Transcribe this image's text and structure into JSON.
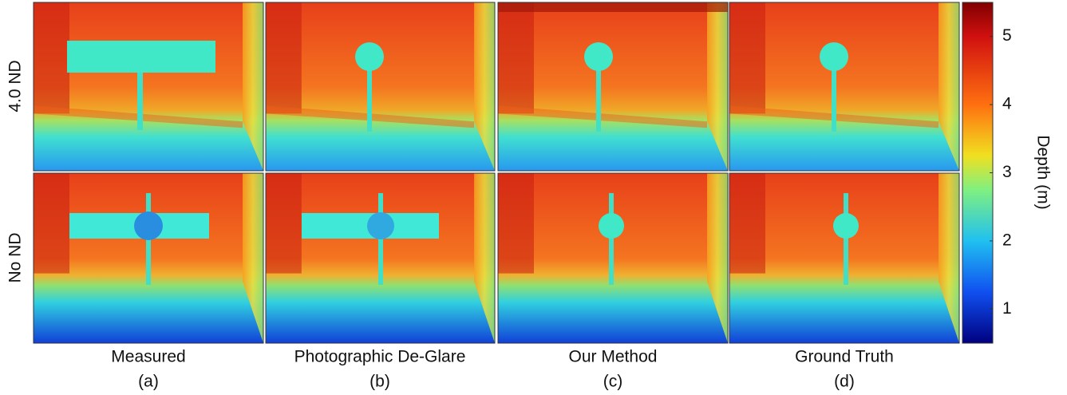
{
  "row_labels": [
    "4.0 ND",
    "No ND"
  ],
  "columns": [
    {
      "name": "Measured",
      "letter": "(a)"
    },
    {
      "name": "Photographic De-Glare",
      "letter": "(b)"
    },
    {
      "name": "Our Method",
      "letter": "(c)"
    },
    {
      "name": "Ground Truth",
      "letter": "(d)"
    }
  ],
  "colorbar": {
    "label": "Depth (m)",
    "lim": [
      0.5,
      5.5
    ],
    "ticks": [
      1,
      2,
      3,
      4,
      5
    ]
  }
}
